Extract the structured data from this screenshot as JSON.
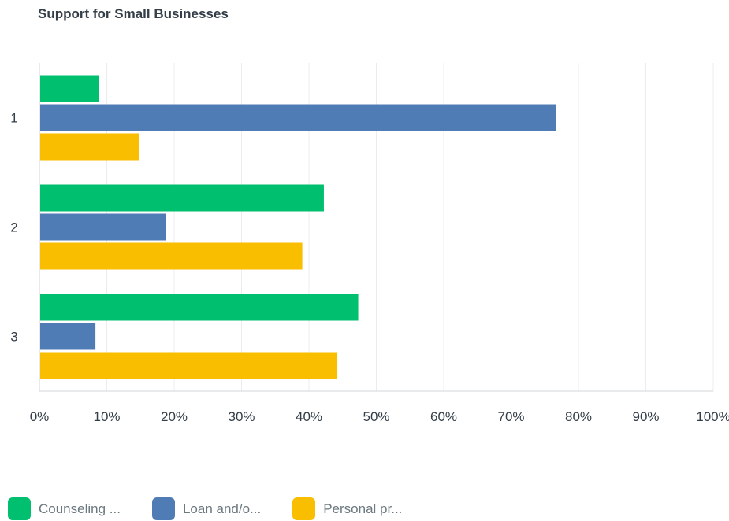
{
  "chart_data": {
    "type": "bar",
    "orientation": "horizontal",
    "title": "Support for Small Businesses",
    "categories": [
      "1",
      "2",
      "3"
    ],
    "series": [
      {
        "name": "Counseling ...",
        "color": "#00bf6f",
        "values": [
          8.7,
          42.1,
          47.2
        ]
      },
      {
        "name": "Loan and/o...",
        "color": "#507cb6",
        "values": [
          76.5,
          18.6,
          8.2
        ]
      },
      {
        "name": "Personal pr...",
        "color": "#f9be00",
        "values": [
          14.7,
          38.9,
          44.1
        ]
      }
    ],
    "xlim": [
      0,
      100
    ],
    "xticks": [
      "0%",
      "10%",
      "20%",
      "30%",
      "40%",
      "50%",
      "60%",
      "70%",
      "80%",
      "90%",
      "100%"
    ],
    "grid": true,
    "legend_position": "bottom"
  }
}
